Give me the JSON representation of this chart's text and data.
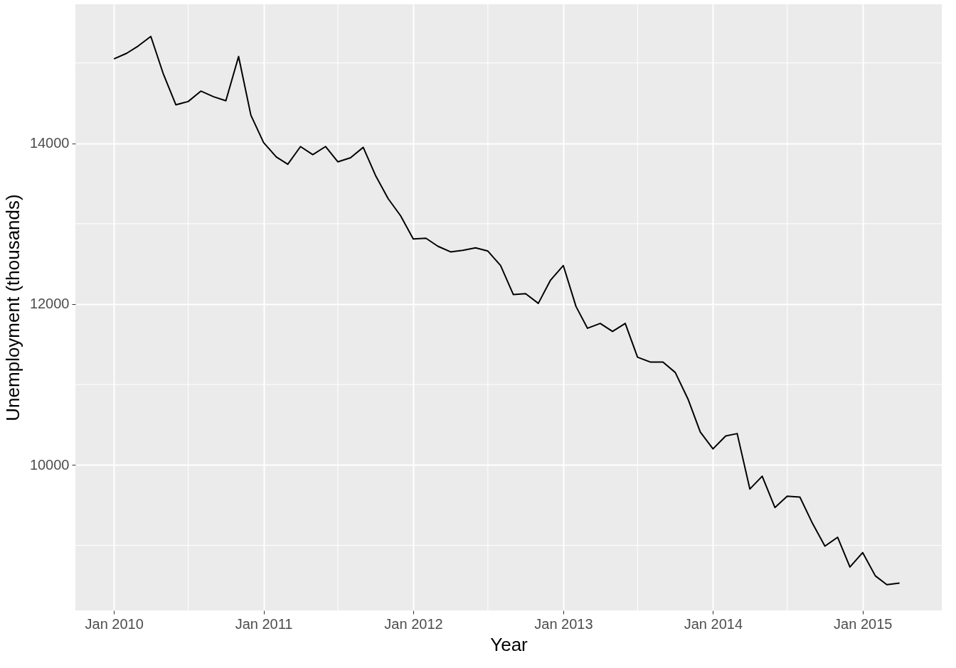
{
  "chart_data": {
    "type": "line",
    "xlabel": "Year",
    "ylabel": "Unemployment (thousands)",
    "x": [
      "2010-01",
      "2010-02",
      "2010-03",
      "2010-04",
      "2010-05",
      "2010-06",
      "2010-07",
      "2010-08",
      "2010-09",
      "2010-10",
      "2010-11",
      "2010-12",
      "2011-01",
      "2011-02",
      "2011-03",
      "2011-04",
      "2011-05",
      "2011-06",
      "2011-07",
      "2011-08",
      "2011-09",
      "2011-10",
      "2011-11",
      "2011-12",
      "2012-01",
      "2012-02",
      "2012-03",
      "2012-04",
      "2012-05",
      "2012-06",
      "2012-07",
      "2012-08",
      "2012-09",
      "2012-10",
      "2012-11",
      "2012-12",
      "2013-01",
      "2013-02",
      "2013-03",
      "2013-04",
      "2013-05",
      "2013-06",
      "2013-07",
      "2013-08",
      "2013-09",
      "2013-10",
      "2013-11",
      "2013-12",
      "2014-01",
      "2014-02",
      "2014-03",
      "2014-04",
      "2014-05",
      "2014-06",
      "2014-07",
      "2014-08",
      "2014-09",
      "2014-10",
      "2014-11",
      "2014-12",
      "2015-01",
      "2015-02",
      "2015-03",
      "2015-04"
    ],
    "series": [
      {
        "color": "#000000",
        "values": [
          15050,
          15120,
          15210,
          15330,
          14870,
          14480,
          14520,
          14650,
          14580,
          14530,
          15080,
          14350,
          14010,
          13830,
          13740,
          13960,
          13860,
          13960,
          13770,
          13820,
          13950,
          13600,
          13310,
          13100,
          12810,
          12820,
          12720,
          12650,
          12670,
          12700,
          12660,
          12480,
          12120,
          12130,
          12010,
          12300,
          12480,
          11970,
          11700,
          11760,
          11660,
          11760,
          11340,
          11280,
          11280,
          11150,
          10820,
          10410,
          10200,
          10360,
          10390,
          9700,
          9860,
          9470,
          9610,
          9600,
          9270,
          8990,
          9100,
          8730,
          8910,
          8620,
          8510,
          8530
        ]
      }
    ],
    "xlim": [
      "2009-09-29",
      "2015-07-13"
    ],
    "xticks": [
      {
        "value": "2010-01",
        "label": "Jan 2010"
      },
      {
        "value": "2010-07",
        "label": null
      },
      {
        "value": "2011-01",
        "label": "Jan 2011"
      },
      {
        "value": "2011-07",
        "label": null
      },
      {
        "value": "2012-01",
        "label": "Jan 2012"
      },
      {
        "value": "2012-07",
        "label": null
      },
      {
        "value": "2013-01",
        "label": "Jan 2013"
      },
      {
        "value": "2013-07",
        "label": null
      },
      {
        "value": "2014-01",
        "label": "Jan 2014"
      },
      {
        "value": "2014-07",
        "label": null
      },
      {
        "value": "2015-01",
        "label": "Jan 2015"
      }
    ],
    "ylim": [
      8190,
      15730
    ],
    "yticks": [
      {
        "value": 9000,
        "label": null
      },
      10000,
      {
        "value": 11000,
        "label": null
      },
      12000,
      {
        "value": 13000,
        "label": null
      },
      14000,
      {
        "value": 15000,
        "label": null
      }
    ],
    "grid": true,
    "legend": false,
    "marker": "none",
    "line_style": "solid"
  }
}
